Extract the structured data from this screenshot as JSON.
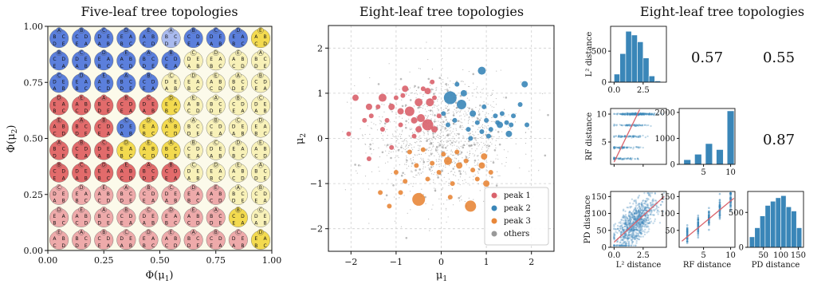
{
  "chart_data": [
    {
      "id": "five_leaf",
      "type": "heatmap",
      "title": "Five-leaf tree topologies",
      "xlabel": "Φ(μ1)",
      "ylabel": "Φ(μ2)",
      "xlim": [
        0,
        1
      ],
      "ylim": [
        0,
        1
      ],
      "xticks": [
        "0.00",
        "0.25",
        "0.50",
        "0.75",
        "1.00"
      ],
      "yticks": [
        "0.00",
        "0.25",
        "0.50",
        "0.75",
        "1.00"
      ],
      "grid_rows": 10,
      "grid_cols": 10,
      "cell_colors_top_to_bottom": [
        [
          "blue",
          "blue",
          "blue",
          "blue",
          "blue",
          "lightblue",
          "blue",
          "blue",
          "blue",
          "yellow"
        ],
        [
          "blue",
          "blue",
          "blue",
          "blue",
          "blue",
          "blue",
          "lightyellow",
          "lightyellow",
          "lightyellow",
          "lightyellow"
        ],
        [
          "blue",
          "blue",
          "blue",
          "blue",
          "blue",
          "lightyellow",
          "lightyellow",
          "lightyellow",
          "lightyellow",
          "lightyellow"
        ],
        [
          "red",
          "red",
          "red",
          "red",
          "red",
          "yellow",
          "lightyellow",
          "lightyellow",
          "lightyellow",
          "lightyellow"
        ],
        [
          "red",
          "red",
          "red",
          "blue",
          "yellow",
          "yellow",
          "lightyellow",
          "lightyellow",
          "lightyellow",
          "lightyellow"
        ],
        [
          "red",
          "red",
          "red",
          "yellow",
          "yellow",
          "yellow",
          "lightyellow",
          "lightyellow",
          "lightyellow",
          "lightyellow"
        ],
        [
          "red",
          "red",
          "red",
          "red",
          "red",
          "red",
          "lightyellow",
          "lightyellow",
          "lightyellow",
          "lightyellow"
        ],
        [
          "pink",
          "pink",
          "pink",
          "pink",
          "pink",
          "pink",
          "pink",
          "pink",
          "lightyellow",
          "lightyellow"
        ],
        [
          "pink",
          "pink",
          "pink",
          "pink",
          "pink",
          "pink",
          "pink",
          "pink",
          "yellow",
          "lightyellow"
        ],
        [
          "pink",
          "pink",
          "pink",
          "pink",
          "pink",
          "pink",
          "pink",
          "pink",
          "pink",
          "yellow"
        ]
      ],
      "colors": {
        "blue": "#5b7fdc",
        "lightblue": "#a9baee",
        "red": "#e26b6b",
        "pink": "#eeaaaa",
        "yellow": "#f3da4f",
        "lightyellow": "#f8f1b8"
      },
      "leaf_labels": [
        "A",
        "B",
        "C",
        "D",
        "E"
      ]
    },
    {
      "id": "eight_leaf_scatter",
      "type": "scatter",
      "title": "Eight-leaf tree topologies",
      "xlabel": "μ1",
      "ylabel": "μ2",
      "xlim": [
        -2.5,
        2.5
      ],
      "ylim": [
        -2.5,
        2.5
      ],
      "xticks": [
        "−2",
        "−1",
        "0",
        "1",
        "2"
      ],
      "yticks": [
        "−2",
        "−1",
        "0",
        "1",
        "2"
      ],
      "grid": true,
      "legend_placement": "bottom-right",
      "series": [
        {
          "name": "peak 1",
          "color": "#d9626b",
          "points": [
            [
              -1.9,
              0.9,
              4
            ],
            [
              -1.6,
              0.7,
              4
            ],
            [
              -1.3,
              0.9,
              5
            ],
            [
              -1.1,
              0.7,
              4
            ],
            [
              -0.9,
              0.6,
              4
            ],
            [
              -0.8,
              1.1,
              4
            ],
            [
              -0.7,
              0.6,
              6
            ],
            [
              -0.6,
              0.4,
              4
            ],
            [
              -0.5,
              0.8,
              5
            ],
            [
              -0.3,
              1.05,
              4
            ],
            [
              -0.25,
              0.8,
              5
            ],
            [
              -0.3,
              0.3,
              7
            ],
            [
              -0.45,
              0.45,
              5
            ],
            [
              -0.5,
              0.2,
              4
            ],
            [
              -0.15,
              0.2,
              4
            ],
            [
              -0.05,
              0.5,
              3
            ],
            [
              -0.15,
              0.9,
              3
            ],
            [
              -0.6,
              0.05,
              3
            ],
            [
              -0.9,
              0.3,
              3
            ],
            [
              -1.2,
              0.4,
              3
            ],
            [
              -1.3,
              0.2,
              3
            ],
            [
              -1.7,
              0.4,
              3
            ],
            [
              -1.55,
              0.5,
              3
            ],
            [
              -1.4,
              0.7,
              3
            ],
            [
              -1.0,
              0.9,
              3
            ],
            [
              -0.85,
              0.95,
              3
            ],
            [
              -0.4,
              1.1,
              3
            ],
            [
              -0.2,
              1.25,
              3
            ],
            [
              -2.05,
              0.1,
              3
            ],
            [
              -1.6,
              -0.45,
              3
            ],
            [
              -1.1,
              -0.2,
              3
            ]
          ]
        },
        {
          "name": "peak 2",
          "color": "#3a86b8",
          "points": [
            [
              0.2,
              0.9,
              8
            ],
            [
              0.45,
              0.75,
              6
            ],
            [
              0.5,
              1.0,
              4
            ],
            [
              0.9,
              1.5,
              5
            ],
            [
              1.3,
              0.3,
              4
            ],
            [
              1.5,
              0.1,
              4
            ],
            [
              1.75,
              0.75,
              3
            ],
            [
              1.85,
              1.2,
              4
            ],
            [
              0.7,
              0.55,
              4
            ],
            [
              0.8,
              0.35,
              3
            ],
            [
              1.0,
              0.4,
              3
            ],
            [
              1.1,
              0.2,
              3
            ],
            [
              1.2,
              0.5,
              3
            ],
            [
              0.95,
              0.7,
              3
            ],
            [
              0.6,
              0.2,
              3
            ],
            [
              1.35,
              0.55,
              3
            ],
            [
              1.45,
              0.35,
              3
            ],
            [
              1.6,
              0.5,
              3
            ],
            [
              0.35,
              1.2,
              3
            ],
            [
              0.65,
              0.0,
              3
            ],
            [
              0.3,
              0.4,
              3
            ],
            [
              0.15,
              0.3,
              3
            ],
            [
              0.05,
              0.55,
              3
            ],
            [
              1.9,
              0.3,
              3
            ],
            [
              1.55,
              0.3,
              3
            ],
            [
              1.05,
              0.05,
              3
            ],
            [
              0.9,
              0.15,
              3
            ],
            [
              1.25,
              0.35,
              3
            ]
          ]
        },
        {
          "name": "peak 3",
          "color": "#e8873a",
          "points": [
            [
              0.15,
              -0.5,
              5
            ],
            [
              0.4,
              -0.6,
              4
            ],
            [
              0.55,
              -0.5,
              3
            ],
            [
              0.7,
              -0.7,
              3
            ],
            [
              0.9,
              -0.6,
              4
            ],
            [
              0.95,
              -0.4,
              4
            ],
            [
              1.0,
              -1.0,
              4
            ],
            [
              0.65,
              -1.5,
              7
            ],
            [
              0.25,
              -1.0,
              3
            ],
            [
              0.2,
              -1.3,
              3
            ],
            [
              -0.5,
              -1.35,
              8
            ],
            [
              -0.55,
              -0.6,
              3
            ],
            [
              -0.8,
              -0.95,
              3
            ],
            [
              -0.9,
              -1.2,
              3
            ],
            [
              -1.15,
              -1.5,
              3
            ],
            [
              -1.35,
              -1.2,
              3
            ],
            [
              -1.0,
              -0.75,
              3
            ],
            [
              -0.3,
              -0.9,
              3
            ],
            [
              -0.2,
              -0.55,
              3
            ],
            [
              -0.05,
              -0.75,
              3
            ],
            [
              0.05,
              -0.35,
              3
            ],
            [
              0.35,
              -0.3,
              3
            ],
            [
              -0.7,
              -0.3,
              3
            ],
            [
              1.25,
              -1.3,
              3
            ],
            [
              1.1,
              -0.75,
              3
            ],
            [
              0.8,
              -0.9,
              3
            ],
            [
              -0.4,
              -0.25,
              3
            ]
          ]
        },
        {
          "name": "others",
          "color": "#999999",
          "points": []
        }
      ]
    },
    {
      "id": "pairs_grid",
      "type": "scatter",
      "title": "Eight-leaf tree topologies",
      "variables": [
        "L² distance",
        "RF distance",
        "PD distance"
      ],
      "correlations": {
        "L2_RF": "0.57",
        "L2_PD": "0.55",
        "RF_PD": "0.87"
      },
      "hist_color": "#3a86b8",
      "fit_line_color": "#d9626b",
      "hist_L2": {
        "bin_edges": [
          0,
          0.5,
          1.0,
          1.5,
          2.0,
          2.5,
          3.0,
          3.5,
          4.0
        ],
        "counts": [
          130,
          460,
          820,
          760,
          650,
          390,
          100,
          20
        ],
        "xticks": [
          "0.0",
          "2.5"
        ],
        "yticks": [
          "0",
          "500"
        ],
        "ylim": [
          0,
          900
        ]
      },
      "hist_RF": {
        "bins": [
          2,
          4,
          6,
          8,
          10
        ],
        "counts": [
          170,
          380,
          790,
          560,
          2050
        ],
        "xticks": [
          "5",
          "10"
        ],
        "yticks": [
          "0",
          "1000",
          "2000"
        ],
        "ylim": [
          0,
          2150
        ]
      },
      "hist_PD": {
        "bin_edges": [
          10,
          25,
          40,
          55,
          70,
          85,
          100,
          115,
          130,
          145,
          160
        ],
        "counts": [
          150,
          280,
          450,
          600,
          660,
          710,
          740,
          580,
          520,
          280
        ],
        "xticks": [
          "50",
          "100",
          "150"
        ],
        "yticks": [
          "0",
          "500"
        ],
        "ylim": [
          0,
          800
        ]
      },
      "scatter_RF_vs_L2": {
        "xlim": [
          -0.3,
          4.5
        ],
        "ylim": [
          1,
          11
        ],
        "xticks": [
          "0.0",
          "2.5"
        ],
        "yticks": [
          "5",
          "10"
        ],
        "fit": [
          [
            0.0,
            1.4
          ],
          [
            2.2,
            10.8
          ]
        ]
      },
      "scatter_PD_vs_L2": {
        "xlim": [
          -0.3,
          4.5
        ],
        "ylim": [
          0,
          165
        ],
        "xticks": [
          "0.0",
          "2.5"
        ],
        "yticks": [
          "0",
          "50",
          "100",
          "150"
        ],
        "fit": [
          [
            0.0,
            15
          ],
          [
            4.3,
            150
          ]
        ]
      },
      "scatter_PD_vs_RF": {
        "xlim": [
          0.5,
          10.8
        ],
        "ylim": [
          0,
          165
        ],
        "xticks": [
          "5",
          "10"
        ],
        "yticks": [
          "50",
          "100",
          "150"
        ],
        "fit": [
          [
            1.0,
            18
          ],
          [
            10.6,
            145
          ]
        ]
      }
    }
  ]
}
